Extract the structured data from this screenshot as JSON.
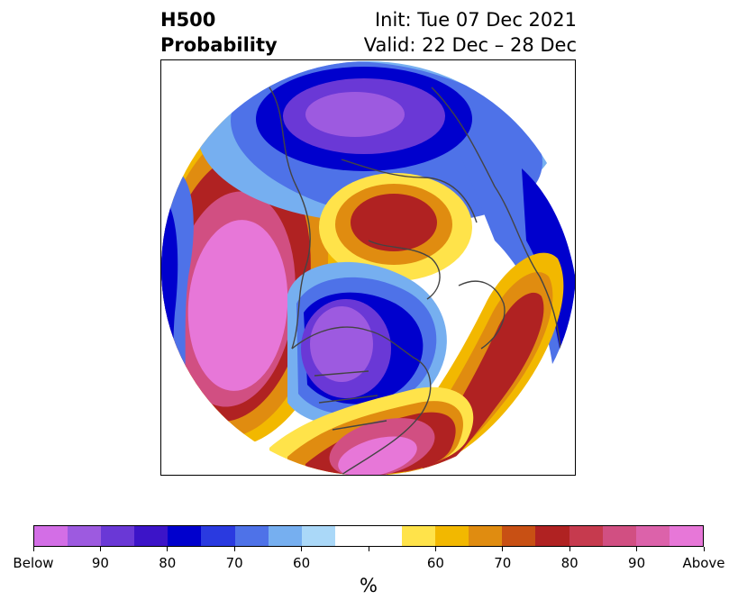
{
  "title": {
    "left_line1": "H500",
    "left_line2": "Probability",
    "right_line1": "Init: Tue 07 Dec 2021",
    "right_line2": "Valid: 22 Dec – 28 Dec"
  },
  "colorbar": {
    "colors": [
      "#d36ee6",
      "#9d5ae0",
      "#6a38d6",
      "#3c14c8",
      "#0000cd",
      "#2a3ae0",
      "#4e72e8",
      "#76aff0",
      "#aad8f8",
      "#ffffff",
      "#ffffff",
      "#ffe34a",
      "#f2b800",
      "#e08c10",
      "#c85014",
      "#b02222",
      "#c63a4e",
      "#d14f82",
      "#dc62aa",
      "#e777d8"
    ],
    "tick_labels": [
      "Below",
      "90",
      "80",
      "70",
      "60",
      "",
      "60",
      "70",
      "80",
      "90",
      "Above"
    ],
    "unit": "%"
  },
  "map": {
    "projection": "north-polar-stereographic",
    "palette": {
      "magenta": "#e777d8",
      "pink": "#d14f82",
      "red": "#b02222",
      "redorange": "#c85014",
      "orange": "#e08c10",
      "gold": "#f2b800",
      "yellow": "#ffe34a",
      "white": "#ffffff",
      "lightblue": "#aad8f8",
      "skyblue": "#76aff0",
      "blue": "#4e72e8",
      "royal": "#2a3ae0",
      "navy": "#0000cd",
      "indigo": "#3c14c8",
      "violet": "#6a38d6",
      "purple": "#9d5ae0",
      "lilac": "#d36ee6",
      "coast": "#444444"
    }
  }
}
